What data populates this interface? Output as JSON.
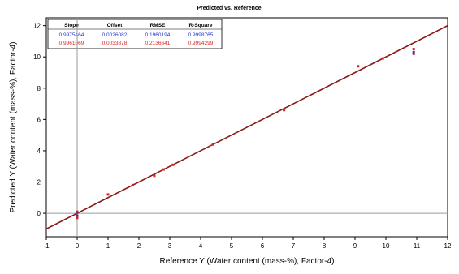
{
  "chart_data": {
    "type": "scatter",
    "title": "Predicted vs. Reference",
    "xlabel": "Reference Y (Water content (mass-%), Factor-4)",
    "ylabel": "Predicted Y (Water content (mass-%), Factor-4)",
    "xlim": [
      -1,
      12
    ],
    "ylim": [
      -1.5,
      12.5
    ],
    "xticks": [
      "-1",
      "0",
      "1",
      "2",
      "3",
      "4",
      "5",
      "6",
      "7",
      "8",
      "9",
      "10",
      "11",
      "12"
    ],
    "yticks": [
      "0",
      "2",
      "4",
      "6",
      "8",
      "10",
      "12"
    ],
    "grid": false,
    "stats_table": {
      "headers": [
        "Slope",
        "Offset",
        "RMSE",
        "R-Square"
      ],
      "rows": [
        {
          "values": [
            "0.9975464",
            "0.0026082",
            "0.1960194",
            "0.9998765"
          ],
          "color": "#2233cc"
        },
        {
          "values": [
            "0.9961069",
            "0.0033878",
            "0.2136641",
            "0.9994299"
          ],
          "color": "#dd2222"
        }
      ]
    },
    "reference_line": {
      "color": "#8b1a1a"
    },
    "series": [
      {
        "color": "#2233cc",
        "points": [
          {
            "x": 0.0,
            "y": -0.15
          },
          {
            "x": 0.0,
            "y": 0.05
          },
          {
            "x": 10.9,
            "y": 10.3
          }
        ]
      },
      {
        "color": "#dd2222",
        "points": [
          {
            "x": 0.0,
            "y": 0.1
          },
          {
            "x": 0.0,
            "y": -0.3
          },
          {
            "x": 1.0,
            "y": 1.2
          },
          {
            "x": 1.8,
            "y": 1.8
          },
          {
            "x": 2.5,
            "y": 2.4
          },
          {
            "x": 2.8,
            "y": 2.8
          },
          {
            "x": 3.1,
            "y": 3.1
          },
          {
            "x": 4.4,
            "y": 4.4
          },
          {
            "x": 6.7,
            "y": 6.6
          },
          {
            "x": 9.1,
            "y": 9.4
          },
          {
            "x": 9.9,
            "y": 9.9
          },
          {
            "x": 10.9,
            "y": 10.5
          },
          {
            "x": 10.9,
            "y": 10.2
          }
        ]
      }
    ]
  }
}
